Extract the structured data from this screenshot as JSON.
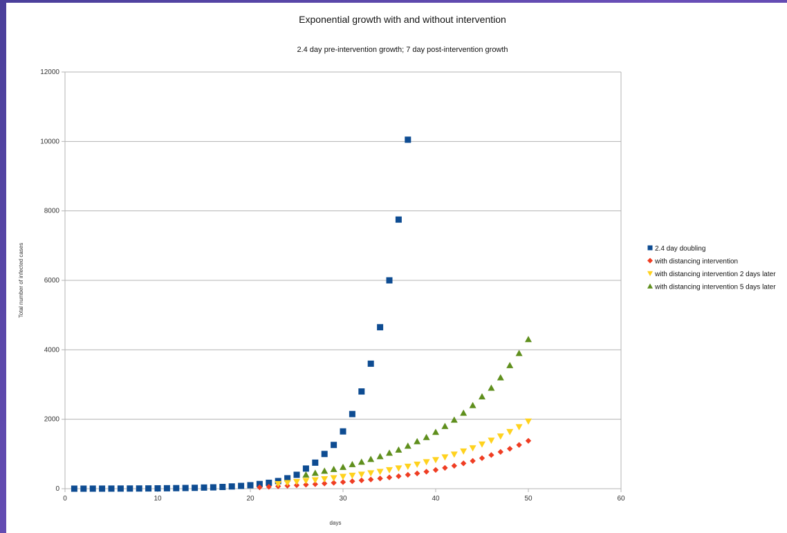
{
  "chart_data": {
    "type": "scatter",
    "title": "Exponential growth with and without intervention",
    "subtitle": "2.4 day pre-intervention growth; 7 day post-intervention growth",
    "xlabel": "days",
    "ylabel": "Total number of infected cases",
    "xlim": [
      0,
      60
    ],
    "ylim": [
      0,
      12000
    ],
    "xticks": [
      0,
      10,
      20,
      30,
      40,
      50,
      60
    ],
    "yticks": [
      0,
      2000,
      4000,
      6000,
      8000,
      10000,
      12000
    ],
    "grid": "horizontal",
    "legend_position": "right",
    "series": [
      {
        "name": "2.4 day doubling",
        "marker": "square",
        "color": "#0e4c92",
        "x": [
          1,
          2,
          3,
          4,
          5,
          6,
          7,
          8,
          9,
          10,
          11,
          12,
          13,
          14,
          15,
          16,
          17,
          18,
          19,
          20,
          21,
          22,
          23,
          24,
          25,
          26,
          27,
          28,
          29,
          30,
          31,
          32,
          33,
          34,
          35,
          36,
          37
        ],
        "y": [
          1,
          1,
          2,
          2,
          3,
          4,
          5,
          6,
          8,
          10,
          13,
          16,
          20,
          25,
          33,
          39,
          50,
          65,
          80,
          100,
          135,
          170,
          220,
          300,
          400,
          580,
          750,
          1000,
          1260,
          1650,
          2150,
          2800,
          3600,
          4650,
          6000,
          7750,
          10050
        ]
      },
      {
        "name": "with distancing intervention",
        "marker": "diamond",
        "color": "#ef3d23",
        "x": [
          21,
          22,
          23,
          24,
          25,
          26,
          27,
          28,
          29,
          30,
          31,
          32,
          33,
          34,
          35,
          36,
          37,
          38,
          39,
          40,
          41,
          42,
          43,
          44,
          45,
          46,
          47,
          48,
          49,
          50
        ],
        "y": [
          40,
          55,
          70,
          85,
          100,
          115,
          130,
          150,
          170,
          190,
          215,
          240,
          265,
          295,
          325,
          360,
          400,
          440,
          490,
          540,
          600,
          660,
          730,
          800,
          880,
          970,
          1060,
          1150,
          1260,
          1380
        ]
      },
      {
        "name": "with distancing intervention 2 days later",
        "marker": "triangle-down",
        "color": "#ffd21e",
        "x": [
          23,
          24,
          25,
          26,
          27,
          28,
          29,
          30,
          31,
          32,
          33,
          34,
          35,
          36,
          37,
          38,
          39,
          40,
          41,
          42,
          43,
          44,
          45,
          46,
          47,
          48,
          49,
          50
        ],
        "y": [
          140,
          170,
          200,
          230,
          250,
          280,
          310,
          350,
          380,
          410,
          450,
          490,
          540,
          590,
          640,
          700,
          770,
          830,
          910,
          990,
          1080,
          1170,
          1280,
          1390,
          1510,
          1640,
          1780,
          1940
        ]
      },
      {
        "name": "with distancing intervention 5 days later",
        "marker": "triangle-up",
        "color": "#5f8f1d",
        "x": [
          26,
          27,
          28,
          29,
          30,
          31,
          32,
          33,
          34,
          35,
          36,
          37,
          38,
          39,
          40,
          41,
          42,
          43,
          44,
          45,
          46,
          47,
          48,
          49,
          50
        ],
        "y": [
          400,
          450,
          510,
          560,
          620,
          700,
          770,
          850,
          930,
          1030,
          1120,
          1230,
          1360,
          1480,
          1630,
          1800,
          1980,
          2180,
          2400,
          2650,
          2900,
          3200,
          3550,
          3900,
          4300
        ]
      }
    ]
  }
}
